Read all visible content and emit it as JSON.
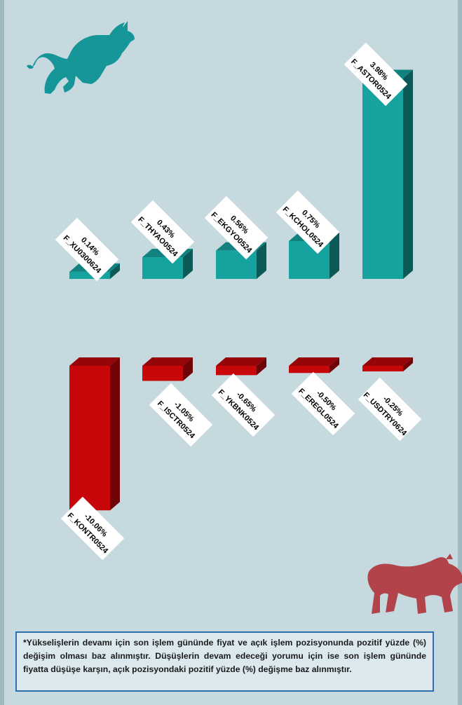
{
  "chart_data": {
    "type": "bar",
    "positive": {
      "color": "#16a3a0",
      "series": [
        {
          "name": "F_XU0300624",
          "value": 0.14,
          "value_label": "0.14%"
        },
        {
          "name": "F_THYAO0524",
          "value": 0.43,
          "value_label": "0.43%"
        },
        {
          "name": "F_EKGYO0524",
          "value": 0.56,
          "value_label": "0.56%"
        },
        {
          "name": "F_KCHOL0524",
          "value": 0.75,
          "value_label": "0.75%"
        },
        {
          "name": "F_ASTOR0524",
          "value": 3.98,
          "value_label": "3.98%"
        }
      ]
    },
    "negative": {
      "color": "#c8070b",
      "series": [
        {
          "name": "F_KONTR0524",
          "value": -10.06,
          "value_label": "-10.06%"
        },
        {
          "name": "F_ISCTR0524",
          "value": -1.05,
          "value_label": "-1.05%"
        },
        {
          "name": "F_YKBNK0524",
          "value": -0.65,
          "value_label": "-0.65%"
        },
        {
          "name": "F_EREGL0524",
          "value": -0.5,
          "value_label": "-0.50%"
        },
        {
          "name": "F_USDTRY0624",
          "value": -0.25,
          "value_label": "-0.25%"
        }
      ]
    }
  },
  "icons": {
    "top_left": "bull-icon",
    "bottom_right": "bear-icon"
  },
  "colors": {
    "background": "#c5d9df",
    "bull": "#17969a",
    "bear": "#b2434a",
    "note_border": "#2f6fb1"
  },
  "note": {
    "text": "*Yükselişlerin devamı için son işlem gününde fiyat ve açık işlem pozisyonunda pozitif yüzde (%) değişim olması baz alınmıştır. Düşüşlerin devam edeceği yorumu için ise son işlem gününde fiyatta düşüşe karşın, açık pozisyondaki pozitif yüzde (%) değişme baz alınmıştır."
  }
}
